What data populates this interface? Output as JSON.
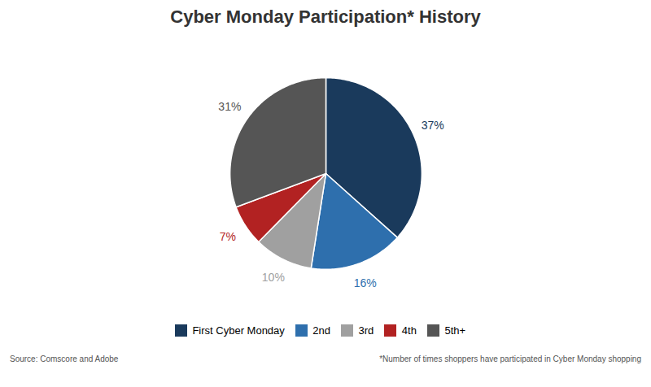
{
  "chart_data": {
    "type": "pie",
    "title": "Cyber Monday Participation* History",
    "categories": [
      "First Cyber Monday",
      "2nd",
      "3rd",
      "4th",
      "5th+"
    ],
    "values": [
      37,
      16,
      10,
      7,
      31
    ],
    "value_labels": [
      "37%",
      "16%",
      "10%",
      "7%",
      "31%"
    ],
    "colors": [
      "#1a3a5c",
      "#2e6fad",
      "#a0a0a0",
      "#b22222",
      "#555555"
    ],
    "data_labels": true,
    "legend": "bottom",
    "annotations": [
      "Source: Comscore and Adobe",
      "*Number of times shoppers have participated in Cyber Monday shopping"
    ]
  }
}
